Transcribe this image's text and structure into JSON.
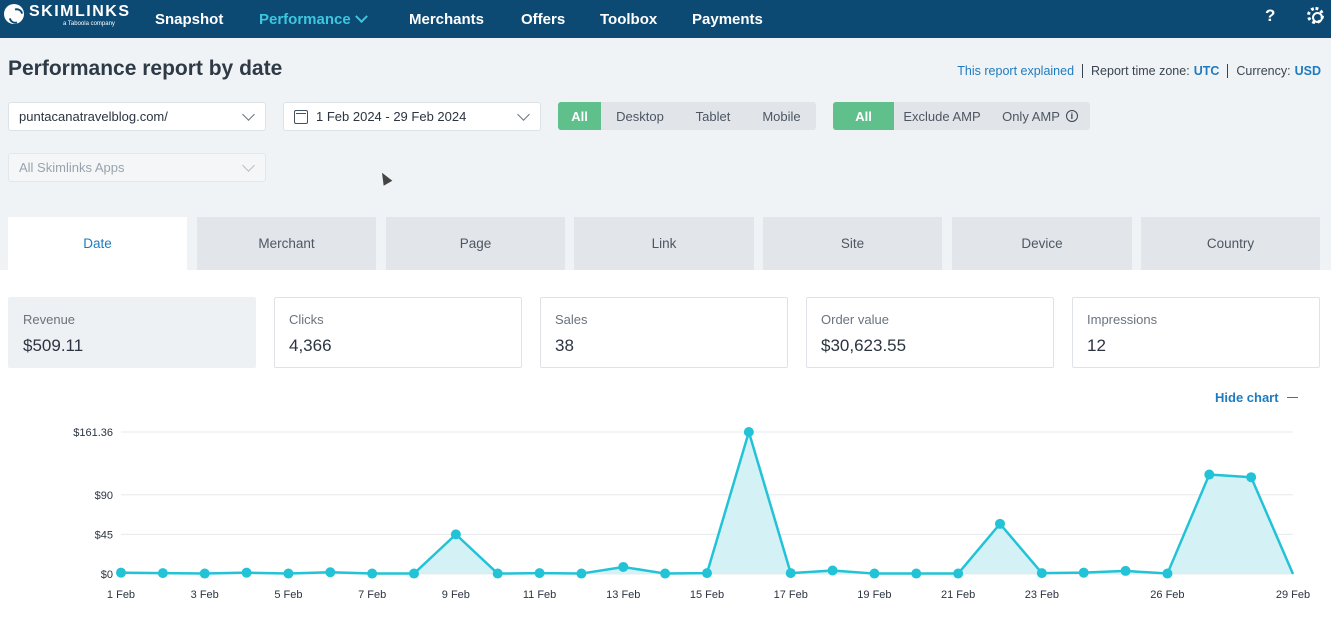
{
  "brand": {
    "name": "SKIMLINKS",
    "sub": "a Taboola company"
  },
  "nav": {
    "items": [
      "Snapshot",
      "Performance",
      "Merchants",
      "Offers",
      "Toolbox",
      "Payments"
    ],
    "active": "Performance",
    "help": "?"
  },
  "header": {
    "title": "Performance report by date",
    "explained": "This report explained",
    "tz_label": "Report time zone:",
    "tz": "UTC",
    "cur_label": "Currency:",
    "cur": "USD"
  },
  "filters": {
    "site": "puntacanatravelblog.com/",
    "date": "1 Feb 2024 - 29 Feb 2024",
    "apps": "All Skimlinks Apps",
    "device": [
      "All",
      "Desktop",
      "Tablet",
      "Mobile"
    ],
    "device_selected": "All",
    "amp": [
      "All",
      "Exclude AMP",
      "Only AMP"
    ],
    "amp_selected": "All"
  },
  "tabs": [
    "Date",
    "Merchant",
    "Page",
    "Link",
    "Site",
    "Device",
    "Country"
  ],
  "active_tab": "Date",
  "kpis": [
    {
      "label": "Revenue",
      "value": "$509.11"
    },
    {
      "label": "Clicks",
      "value": "4,366"
    },
    {
      "label": "Sales",
      "value": "38"
    },
    {
      "label": "Order value",
      "value": "$30,623.55"
    },
    {
      "label": "Impressions",
      "value": "12"
    }
  ],
  "hide_chart": "Hide chart",
  "colors": {
    "nav": "#0d4a73",
    "accent": "#3cc7e0",
    "green": "#5fc08b",
    "link": "#1f7bbf",
    "line": "#22c3d6"
  },
  "chart_data": {
    "type": "area",
    "ytick_labels": [
      "$0",
      "$45",
      "$90",
      "$161.36"
    ],
    "yticks": [
      0,
      45,
      90,
      161.36
    ],
    "ylim": [
      0,
      161.36
    ],
    "xtick_labels": [
      "1 Feb",
      "3 Feb",
      "5 Feb",
      "7 Feb",
      "9 Feb",
      "11 Feb",
      "13 Feb",
      "15 Feb",
      "17 Feb",
      "19 Feb",
      "21 Feb",
      "23 Feb",
      "26 Feb",
      "29 Feb"
    ],
    "xtick_days": [
      1,
      3,
      5,
      7,
      9,
      11,
      13,
      15,
      17,
      19,
      21,
      23,
      26,
      29
    ],
    "x": [
      1,
      2,
      3,
      4,
      5,
      6,
      7,
      8,
      9,
      10,
      11,
      12,
      13,
      14,
      15,
      16,
      17,
      18,
      19,
      20,
      21,
      22,
      23,
      24,
      25,
      26,
      27,
      28,
      29
    ],
    "values": [
      1.5,
      1,
      0.5,
      1.5,
      0.5,
      2,
      0.5,
      0.5,
      45,
      0.5,
      1,
      0.5,
      8,
      0.5,
      1,
      161.36,
      1,
      4,
      0.5,
      0.5,
      0.5,
      57,
      1,
      1.5,
      3.5,
      0.5,
      113,
      110,
      0
    ]
  }
}
